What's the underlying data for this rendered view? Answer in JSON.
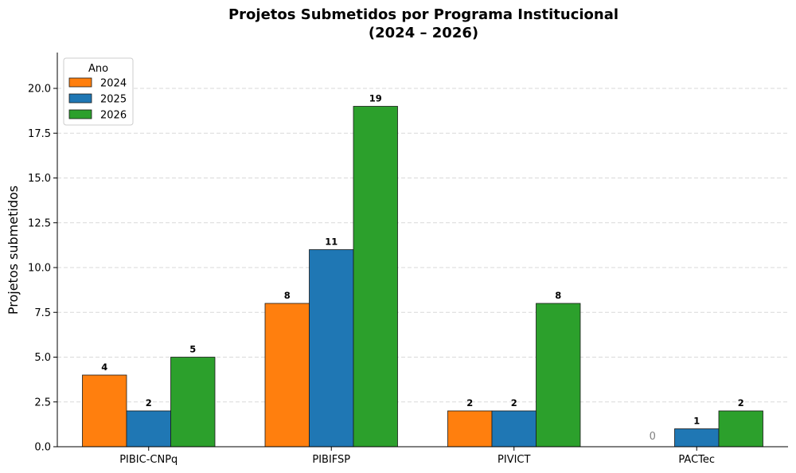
{
  "chart_data": {
    "type": "bar",
    "title_line1": "Projetos Submetidos por Programa Institucional",
    "title_line2": "(2024 – 2026)",
    "xlabel": "",
    "ylabel": "Projetos submetidos",
    "categories": [
      "PIBIC-CNPq",
      "PIBIFSP",
      "PIVICT",
      "PACTec"
    ],
    "series": [
      {
        "name": "2024",
        "color": "#ff7f0e",
        "values": [
          4,
          8,
          2,
          0
        ]
      },
      {
        "name": "2025",
        "color": "#1f77b4",
        "values": [
          2,
          11,
          2,
          1
        ]
      },
      {
        "name": "2026",
        "color": "#2ca02c",
        "values": [
          5,
          19,
          8,
          2
        ]
      }
    ],
    "ylim": [
      0,
      22
    ],
    "yticks": [
      0.0,
      2.5,
      5.0,
      7.5,
      10.0,
      12.5,
      15.0,
      17.5,
      20.0
    ],
    "ytick_labels": [
      "0.0",
      "2.5",
      "5.0",
      "7.5",
      "10.0",
      "12.5",
      "15.0",
      "17.5",
      "20.0"
    ],
    "grid": "y-dashed",
    "legend": {
      "title": "Ano",
      "placement": "top-left"
    }
  }
}
